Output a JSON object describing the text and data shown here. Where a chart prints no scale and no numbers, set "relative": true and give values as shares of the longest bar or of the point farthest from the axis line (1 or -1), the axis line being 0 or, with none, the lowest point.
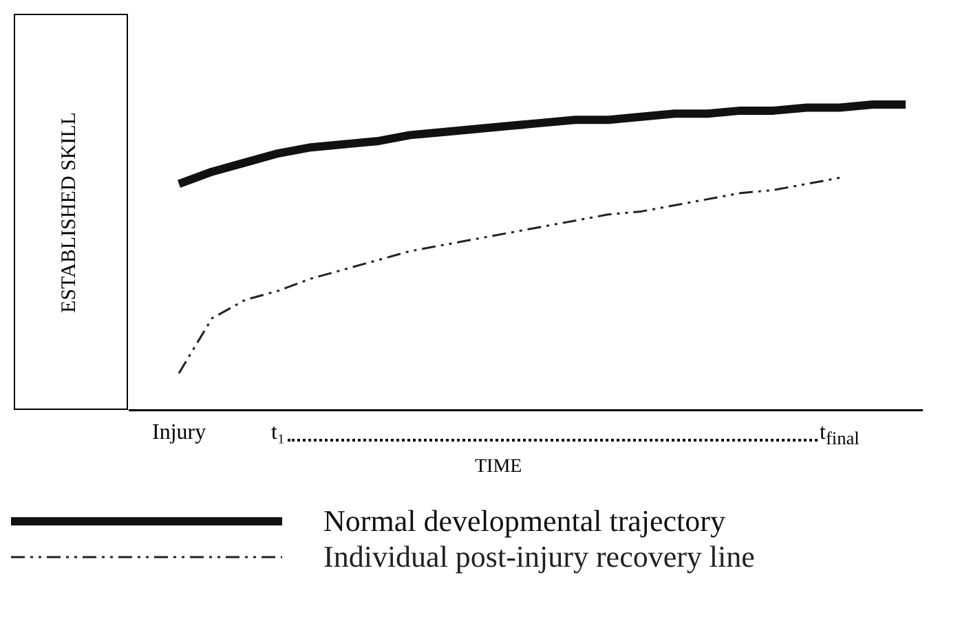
{
  "chart_data": {
    "type": "line",
    "relative": true,
    "xlabel": "TIME",
    "ylabel": "ESTABLISHED SKILL",
    "categories": [
      null,
      "Injury",
      null,
      null,
      "t₁",
      null,
      null,
      null,
      null,
      null,
      null,
      null,
      null,
      null,
      null,
      null,
      null,
      null,
      null,
      null,
      null,
      "t$_{final}$",
      null,
      null
    ],
    "series": [
      {
        "name": "Normal developmental trajectory",
        "color": "#111111",
        "line_style": "solid",
        "values": [
          null,
          0.74,
          0.78,
          0.81,
          0.84,
          0.86,
          0.87,
          0.88,
          0.9,
          0.91,
          0.92,
          0.93,
          0.94,
          0.95,
          0.95,
          0.96,
          0.97,
          0.97,
          0.98,
          0.98,
          0.99,
          0.99,
          1,
          1
        ]
      },
      {
        "name": "Individual post-injury recovery line",
        "color": "#222222",
        "line_style": "dashed",
        "values": [
          null,
          0.12,
          0.3,
          0.36,
          0.39,
          0.43,
          0.46,
          0.49,
          0.52,
          0.54,
          0.56,
          0.58,
          0.6,
          0.62,
          0.64,
          0.65,
          0.67,
          0.69,
          0.71,
          0.72,
          0.74,
          0.76,
          null,
          null
        ]
      }
    ],
    "grid": false,
    "legend": "bottom left",
    "marker": "none"
  }
}
